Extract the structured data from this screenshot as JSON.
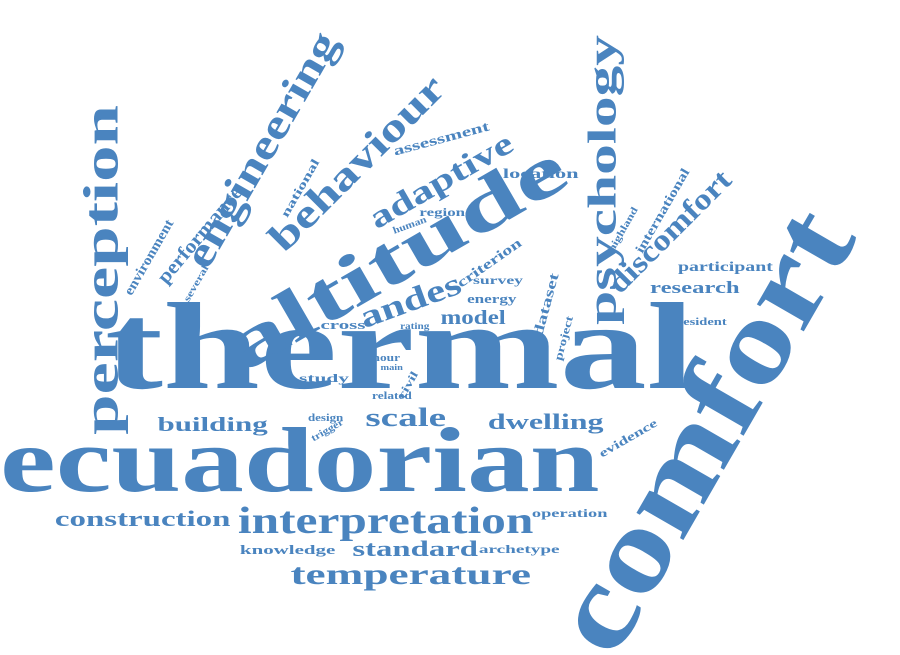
{
  "color": "#4a84bf",
  "words": [
    "thermal",
    "comfort",
    "ecuadorian",
    "altitude",
    "interpretation",
    "perception",
    "engineering",
    "psychology",
    "behaviour",
    "temperature",
    "discomfort",
    "adaptive",
    "andes",
    "construction",
    "scale",
    "dwelling",
    "building",
    "model",
    "standard",
    "performance",
    "research",
    "participant",
    "location",
    "assessment",
    "criterion",
    "dataset",
    "international",
    "environment",
    "knowledge",
    "energy",
    "survey",
    "region",
    "cross",
    "archetype",
    "operation",
    "evidence",
    "study",
    "national",
    "project",
    "highland",
    "resident",
    "human",
    "several",
    "rating",
    "hour",
    "main",
    "civil",
    "related",
    "design",
    "trigger"
  ]
}
